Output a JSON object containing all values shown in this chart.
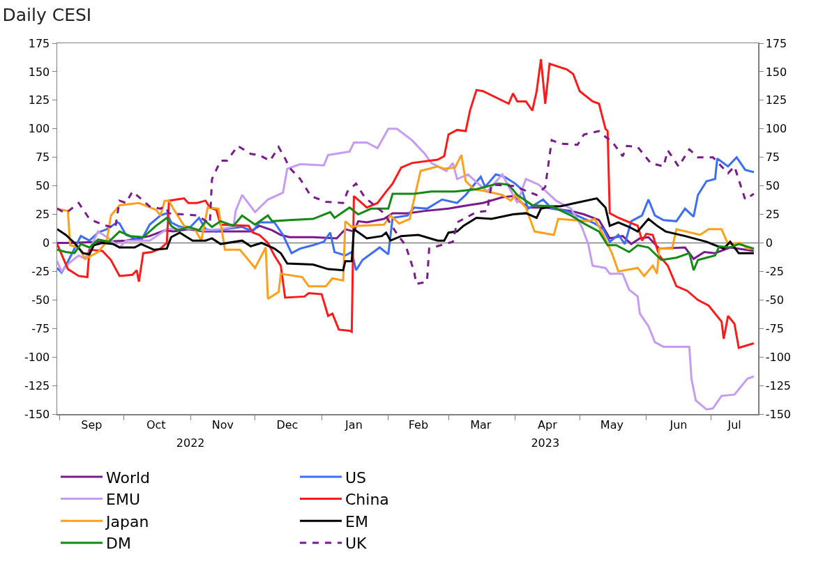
{
  "chart_data": {
    "type": "line",
    "title": "Daily CESI",
    "legend": "bottom",
    "line_style": "solid",
    "xlim": [
      "2022-08-31",
      "2023-07-23"
    ],
    "xticks": [
      {
        "value": "2022-09-01",
        "label": null
      },
      {
        "value": "2022-09-16",
        "label": "Sep"
      },
      {
        "value": "2022-10-01",
        "label": null
      },
      {
        "value": "2022-10-16",
        "label": "Oct"
      },
      {
        "value": "2022-11-01",
        "label": null
      },
      {
        "value": "2022-11-16",
        "label": "Nov"
      },
      {
        "value": "2022-12-01",
        "label": null
      },
      {
        "value": "2022-12-16",
        "label": "Dec"
      },
      {
        "value": "2023-01-01",
        "label": null
      },
      {
        "value": "2023-01-16",
        "label": "Jan"
      },
      {
        "value": "2023-02-01",
        "label": null
      },
      {
        "value": "2023-02-15",
        "label": "Feb"
      },
      {
        "value": "2023-03-01",
        "label": null
      },
      {
        "value": "2023-03-16",
        "label": "Mar"
      },
      {
        "value": "2023-04-01",
        "label": null
      },
      {
        "value": "2023-04-16",
        "label": "Apr"
      },
      {
        "value": "2023-05-01",
        "label": null
      },
      {
        "value": "2023-05-16",
        "label": "May"
      },
      {
        "value": "2023-06-01",
        "label": null
      },
      {
        "value": "2023-06-16",
        "label": "Jun"
      },
      {
        "value": "2023-07-01",
        "label": null
      },
      {
        "value": "2023-07-12",
        "label": "Jul"
      }
    ],
    "x2lim": [
      "2022-08-31",
      "2023-07-23"
    ],
    "x2ticks": [
      {
        "value": "2022-11-01",
        "label": "2022"
      },
      {
        "value": "2023-04-15",
        "label": "2023"
      }
    ],
    "ylim": [
      -150,
      175
    ],
    "yticks": [
      -150,
      -125,
      -100,
      -75,
      -50,
      -25,
      0,
      25,
      50,
      75,
      100,
      125,
      150,
      175
    ],
    "y2lim": [
      -150,
      175
    ],
    "y2ticks": [
      -150,
      -125,
      -100,
      -75,
      -50,
      -25,
      0,
      25,
      50,
      75,
      100,
      125,
      150,
      175
    ],
    "ref_lines": [
      {
        "axis": "y",
        "value": 0,
        "color": "#808080"
      }
    ],
    "series": [
      {
        "name": "World",
        "color": "#7a1a8c",
        "x": [
          "2022-08-31",
          "2022-09-06",
          "2022-09-21",
          "2022-10-02",
          "2022-10-13",
          "2022-10-20",
          "2022-10-24",
          "2022-10-31",
          "2022-11-07",
          "2022-11-15",
          "2022-11-29",
          "2022-12-03",
          "2022-12-09",
          "2022-12-13",
          "2022-12-17",
          "2022-12-28",
          "2023-01-08",
          "2023-01-12",
          "2023-01-16",
          "2023-01-18",
          "2023-01-22",
          "2023-01-30",
          "2023-02-03",
          "2023-02-10",
          "2023-02-18",
          "2023-03-01",
          "2023-03-10",
          "2023-03-17",
          "2023-03-26",
          "2023-03-31",
          "2023-04-07",
          "2023-04-15",
          "2023-04-27",
          "2023-05-03",
          "2023-05-10",
          "2023-05-15",
          "2023-05-21",
          "2023-05-25",
          "2023-05-29",
          "2023-06-02",
          "2023-06-07",
          "2023-06-19",
          "2023-06-23",
          "2023-06-28",
          "2023-07-03",
          "2023-07-10",
          "2023-07-21"
        ],
        "values": [
          0,
          0,
          1,
          2,
          6,
          11,
          10,
          12,
          10,
          10,
          10,
          15,
          11,
          7,
          5,
          5,
          4,
          12,
          10,
          19,
          18,
          21,
          26,
          26,
          28,
          30,
          33,
          35,
          40,
          41,
          31,
          31,
          28,
          25,
          20,
          4,
          6,
          -1,
          4,
          5,
          -5,
          -4,
          -14,
          -8,
          -9,
          -4,
          -7
        ]
      },
      {
        "name": "US",
        "color": "#3b6ef5",
        "x": [
          "2022-08-31",
          "2022-09-02",
          "2022-09-04",
          "2022-09-11",
          "2022-09-15",
          "2022-09-19",
          "2022-09-23",
          "2022-09-28",
          "2022-09-29",
          "2022-10-02",
          "2022-10-09",
          "2022-10-13",
          "2022-10-18",
          "2022-10-21",
          "2022-10-23",
          "2022-10-26",
          "2022-10-31",
          "2022-11-05",
          "2022-11-08",
          "2022-11-13",
          "2022-11-17",
          "2022-11-25",
          "2022-11-30",
          "2022-12-03",
          "2022-12-10",
          "2022-12-14",
          "2022-12-18",
          "2022-12-22",
          "2022-12-28",
          "2023-01-02",
          "2023-01-05",
          "2023-01-07",
          "2023-01-12",
          "2023-01-15",
          "2023-01-17",
          "2023-01-20",
          "2023-01-28",
          "2023-02-01",
          "2023-02-03",
          "2023-02-10",
          "2023-02-13",
          "2023-02-19",
          "2023-02-26",
          "2023-03-05",
          "2023-03-09",
          "2023-03-12",
          "2023-03-16",
          "2023-03-18",
          "2023-03-23",
          "2023-03-27",
          "2023-04-01",
          "2023-04-04",
          "2023-04-07",
          "2023-04-14",
          "2023-04-18",
          "2023-04-25",
          "2023-05-02",
          "2023-05-08",
          "2023-05-12",
          "2023-05-15",
          "2023-05-19",
          "2023-05-22",
          "2023-05-25",
          "2023-05-30",
          "2023-06-02",
          "2023-06-05",
          "2023-06-09",
          "2023-06-15",
          "2023-06-19",
          "2023-06-23",
          "2023-06-25",
          "2023-06-29",
          "2023-07-03",
          "2023-07-04",
          "2023-07-09",
          "2023-07-13",
          "2023-07-17",
          "2023-07-21"
        ],
        "values": [
          -22,
          -26,
          -20,
          6,
          2,
          9,
          12,
          18,
          17,
          7,
          2,
          16,
          24,
          26,
          18,
          15,
          12,
          22,
          12,
          10,
          12,
          14,
          10,
          18,
          18,
          7,
          -9,
          -5,
          -2,
          1,
          9,
          -8,
          -11,
          -8,
          -24,
          -15,
          -4,
          -10,
          22,
          24,
          31,
          30,
          38,
          35,
          42,
          49,
          58,
          49,
          60,
          58,
          52,
          47,
          30,
          38,
          30,
          28,
          22,
          17,
          12,
          1,
          7,
          -1,
          19,
          24,
          38,
          24,
          20,
          19,
          30,
          23,
          42,
          54,
          56,
          74,
          67,
          75,
          64,
          62
        ]
      },
      {
        "name": "EMU",
        "color": "#c59cf2",
        "x": [
          "2022-08-31",
          "2022-09-02",
          "2022-09-06",
          "2022-09-10",
          "2022-09-13",
          "2022-09-19",
          "2022-09-24",
          "2022-09-29",
          "2022-10-02",
          "2022-10-13",
          "2022-10-21",
          "2022-10-30",
          "2022-11-07",
          "2022-11-15",
          "2022-11-21",
          "2022-11-22",
          "2022-11-25",
          "2022-12-01",
          "2022-12-07",
          "2022-12-14",
          "2022-12-16",
          "2022-12-22",
          "2023-01-02",
          "2023-01-04",
          "2023-01-14",
          "2023-01-16",
          "2023-01-22",
          "2023-01-27",
          "2023-02-01",
          "2023-02-05",
          "2023-02-12",
          "2023-02-18",
          "2023-02-21",
          "2023-02-28",
          "2023-03-03",
          "2023-03-05",
          "2023-03-10",
          "2023-03-19",
          "2023-03-26",
          "2023-04-02",
          "2023-04-06",
          "2023-04-12",
          "2023-04-20",
          "2023-04-27",
          "2023-05-02",
          "2023-05-05",
          "2023-05-07",
          "2023-05-13",
          "2023-05-15",
          "2023-05-21",
          "2023-05-24",
          "2023-05-28",
          "2023-05-29",
          "2023-06-02",
          "2023-06-05",
          "2023-06-09",
          "2023-06-21",
          "2023-06-22",
          "2023-06-24",
          "2023-06-29",
          "2023-07-02",
          "2023-07-06",
          "2023-07-12",
          "2023-07-18",
          "2023-07-21"
        ],
        "values": [
          -16,
          -25,
          -17,
          -11,
          -14,
          10,
          4,
          -4,
          2,
          2,
          12,
          13,
          11,
          12,
          14,
          28,
          42,
          27,
          38,
          44,
          65,
          69,
          68,
          77,
          80,
          88,
          88,
          83,
          100,
          100,
          90,
          78,
          70,
          63,
          70,
          56,
          60,
          45,
          60,
          35,
          56,
          51,
          37,
          30,
          14,
          -1,
          -20,
          -22,
          -27,
          -27,
          -41,
          -47,
          -62,
          -73,
          -87,
          -91,
          -91,
          -119,
          -138,
          -146,
          -145,
          -134,
          -133,
          -119,
          -117
        ]
      },
      {
        "name": "China",
        "color": "#ff1a1a",
        "x": [
          "2022-08-31",
          "2022-09-05",
          "2022-09-10",
          "2022-09-14",
          "2022-09-15",
          "2022-09-21",
          "2022-09-25",
          "2022-09-29",
          "2022-10-05",
          "2022-10-07",
          "2022-10-08",
          "2022-10-10",
          "2022-10-14",
          "2022-10-18",
          "2022-10-21",
          "2022-10-22",
          "2022-10-29",
          "2022-10-31",
          "2022-11-04",
          "2022-11-08",
          "2022-11-10",
          "2022-11-13",
          "2022-11-15",
          "2022-11-28",
          "2022-11-30",
          "2022-12-03",
          "2022-12-07",
          "2022-12-10",
          "2022-12-13",
          "2022-12-15",
          "2022-12-24",
          "2022-12-26",
          "2023-01-01",
          "2023-01-04",
          "2023-01-06",
          "2023-01-09",
          "2023-01-14",
          "2023-01-15",
          "2023-01-16",
          "2023-01-22",
          "2023-01-27",
          "2023-01-31",
          "2023-02-03",
          "2023-02-07",
          "2023-02-12",
          "2023-02-24",
          "2023-02-27",
          "2023-03-01",
          "2023-03-05",
          "2023-03-09",
          "2023-03-11",
          "2023-03-14",
          "2023-03-17",
          "2023-03-29",
          "2023-03-31",
          "2023-04-02",
          "2023-04-06",
          "2023-04-09",
          "2023-04-11",
          "2023-04-13",
          "2023-04-15",
          "2023-04-17",
          "2023-04-25",
          "2023-04-28",
          "2023-05-01",
          "2023-05-07",
          "2023-05-10",
          "2023-05-13",
          "2023-05-14",
          "2023-05-15",
          "2023-05-19",
          "2023-05-28",
          "2023-05-30",
          "2023-06-01",
          "2023-06-04",
          "2023-06-07",
          "2023-06-11",
          "2023-06-15",
          "2023-06-20",
          "2023-06-25",
          "2023-06-30",
          "2023-07-06",
          "2023-07-07",
          "2023-07-09",
          "2023-07-12",
          "2023-07-14",
          "2023-07-21"
        ],
        "values": [
          -1,
          -23,
          -29,
          -30,
          -6,
          -7,
          -15,
          -29,
          -28,
          -24,
          -34,
          -9,
          -8,
          -5,
          0,
          37,
          39,
          35,
          35,
          37,
          31,
          29,
          16,
          15,
          9,
          7,
          0,
          -11,
          -20,
          -48,
          -47,
          -44,
          -45,
          -64,
          -62,
          -76,
          -77,
          -78,
          41,
          31,
          35,
          45,
          52,
          66,
          70,
          73,
          76,
          95,
          99,
          98,
          116,
          134,
          133,
          122,
          131,
          124,
          124,
          116,
          133,
          161,
          122,
          157,
          152,
          148,
          133,
          124,
          122,
          100,
          98,
          26,
          22,
          15,
          2,
          8,
          7,
          -11,
          -20,
          -38,
          -42,
          -50,
          -55,
          -69,
          -84,
          -64,
          -71,
          -92,
          -88
        ]
      },
      {
        "name": "Japan",
        "color": "#ffa01c",
        "x": [
          "2022-08-31",
          "2022-09-05",
          "2022-09-06",
          "2022-09-10",
          "2022-09-13",
          "2022-09-19",
          "2022-09-23",
          "2022-09-25",
          "2022-09-29",
          "2022-10-08",
          "2022-10-16",
          "2022-10-18",
          "2022-10-20",
          "2022-10-22",
          "2022-10-24",
          "2022-10-29",
          "2022-11-03",
          "2022-11-06",
          "2022-11-09",
          "2022-11-14",
          "2022-11-17",
          "2022-11-24",
          "2022-12-01",
          "2022-12-06",
          "2022-12-07",
          "2022-12-12",
          "2022-12-13",
          "2022-12-23",
          "2022-12-26",
          "2023-01-03",
          "2023-01-06",
          "2023-01-11",
          "2023-01-12",
          "2023-01-15",
          "2023-01-18",
          "2023-01-30",
          "2023-02-02",
          "2023-02-06",
          "2023-02-11",
          "2023-02-12",
          "2023-02-16",
          "2023-02-24",
          "2023-02-27",
          "2023-03-04",
          "2023-03-07",
          "2023-03-09",
          "2023-03-13",
          "2023-03-19",
          "2023-03-26",
          "2023-03-30",
          "2023-04-01",
          "2023-04-06",
          "2023-04-10",
          "2023-04-19",
          "2023-04-21",
          "2023-05-05",
          "2023-05-08",
          "2023-05-12",
          "2023-05-16",
          "2023-05-19",
          "2023-05-28",
          "2023-05-31",
          "2023-06-04",
          "2023-06-06",
          "2023-06-07",
          "2023-06-13",
          "2023-06-15",
          "2023-06-26",
          "2023-06-30",
          "2023-07-06",
          "2023-07-09",
          "2023-07-15",
          "2023-07-18",
          "2023-07-21"
        ],
        "values": [
          30,
          28,
          -2,
          -4,
          -14,
          -8,
          1,
          24,
          33,
          35,
          29,
          24,
          37,
          37,
          30,
          15,
          12,
          2,
          31,
          30,
          -6,
          -6,
          -22,
          -4,
          -49,
          -43,
          -27,
          -30,
          -38,
          -38,
          -31,
          -33,
          19,
          14,
          15,
          16,
          24,
          17,
          21,
          30,
          63,
          67,
          65,
          66,
          77,
          54,
          47,
          45,
          42,
          37,
          42,
          31,
          10,
          7,
          21,
          19,
          21,
          7,
          -9,
          -25,
          -22,
          -29,
          -20,
          -27,
          -5,
          -5,
          12,
          7,
          12,
          12,
          -1,
          0,
          -5,
          -5
        ]
      },
      {
        "name": "EM",
        "color": "#000000",
        "x": [
          "2022-08-31",
          "2022-09-04",
          "2022-09-08",
          "2022-09-12",
          "2022-09-15",
          "2022-09-17",
          "2022-09-21",
          "2022-09-26",
          "2022-09-29",
          "2022-10-06",
          "2022-10-09",
          "2022-10-15",
          "2022-10-21",
          "2022-10-23",
          "2022-10-27",
          "2022-11-02",
          "2022-11-08",
          "2022-11-11",
          "2022-11-15",
          "2022-11-25",
          "2022-11-29",
          "2022-12-04",
          "2022-12-10",
          "2022-12-13",
          "2022-12-16",
          "2022-12-28",
          "2023-01-04",
          "2023-01-11",
          "2023-01-12",
          "2023-01-15",
          "2023-01-16",
          "2023-01-22",
          "2023-01-29",
          "2023-01-31",
          "2023-02-02",
          "2023-02-07",
          "2023-02-15",
          "2023-02-24",
          "2023-02-27",
          "2023-03-01",
          "2023-03-05",
          "2023-03-08",
          "2023-03-14",
          "2023-03-21",
          "2023-03-31",
          "2023-04-06",
          "2023-04-11",
          "2023-04-13",
          "2023-04-18",
          "2023-04-22",
          "2023-04-29",
          "2023-05-09",
          "2023-05-13",
          "2023-05-15",
          "2023-05-19",
          "2023-05-24",
          "2023-05-28",
          "2023-06-02",
          "2023-06-06",
          "2023-06-10",
          "2023-06-19",
          "2023-06-29",
          "2023-07-07",
          "2023-07-10",
          "2023-07-14",
          "2023-07-21"
        ],
        "values": [
          12,
          7,
          0,
          -9,
          -10,
          -2,
          0,
          -1,
          -4,
          -4,
          -1,
          -6,
          -5,
          5,
          9,
          2,
          2,
          4,
          -1,
          2,
          -3,
          0,
          -5,
          -9,
          -18,
          -19,
          -23,
          -24,
          -16,
          -16,
          12,
          4,
          6,
          9,
          2,
          6,
          7,
          2,
          2,
          9,
          10,
          15,
          22,
          21,
          25,
          26,
          22,
          30,
          32,
          32,
          35,
          39,
          31,
          15,
          18,
          14,
          10,
          21,
          15,
          10,
          6,
          1,
          -5,
          1,
          -9,
          -9
        ]
      },
      {
        "name": "DM",
        "color": "#138a13",
        "x": [
          "2022-08-31",
          "2022-09-04",
          "2022-09-08",
          "2022-09-11",
          "2022-09-15",
          "2022-09-19",
          "2022-09-24",
          "2022-09-29",
          "2022-10-04",
          "2022-10-10",
          "2022-10-16",
          "2022-10-21",
          "2022-10-23",
          "2022-10-26",
          "2022-10-31",
          "2022-11-05",
          "2022-11-08",
          "2022-11-11",
          "2022-11-15",
          "2022-11-21",
          "2022-11-25",
          "2022-12-01",
          "2022-12-07",
          "2022-12-09",
          "2022-12-17",
          "2022-12-28",
          "2023-01-05",
          "2023-01-07",
          "2023-01-14",
          "2023-01-18",
          "2023-01-24",
          "2023-02-01",
          "2023-02-03",
          "2023-02-13",
          "2023-02-21",
          "2023-03-04",
          "2023-03-14",
          "2023-03-24",
          "2023-03-29",
          "2023-04-02",
          "2023-04-09",
          "2023-04-18",
          "2023-04-27",
          "2023-05-03",
          "2023-05-10",
          "2023-05-14",
          "2023-05-18",
          "2023-05-24",
          "2023-05-28",
          "2023-06-02",
          "2023-06-08",
          "2023-06-15",
          "2023-06-21",
          "2023-06-23",
          "2023-06-25",
          "2023-07-03",
          "2023-07-05",
          "2023-07-10",
          "2023-07-14",
          "2023-07-21"
        ],
        "values": [
          -6,
          -8,
          -9,
          -1,
          -4,
          3,
          1,
          10,
          6,
          5,
          15,
          22,
          15,
          11,
          14,
          11,
          19,
          14,
          19,
          15,
          24,
          16,
          24,
          19,
          20,
          21,
          27,
          22,
          31,
          25,
          30,
          30,
          43,
          43,
          45,
          45,
          47,
          52,
          51,
          42,
          33,
          32,
          24,
          17,
          10,
          -2,
          -2,
          -8,
          -2,
          -4,
          -15,
          -13,
          -9,
          -24,
          -15,
          -11,
          -3,
          -4,
          -1,
          -5
        ]
      },
      {
        "name": "UK",
        "color": "#7a1a8c",
        "line_style": "dashed",
        "x": [
          "2022-08-31",
          "2022-09-04",
          "2022-09-10",
          "2022-09-15",
          "2022-09-21",
          "2022-09-27",
          "2022-09-29",
          "2022-10-02",
          "2022-10-05",
          "2022-10-10",
          "2022-10-13",
          "2022-10-18",
          "2022-10-20",
          "2022-10-22",
          "2022-11-04",
          "2022-11-10",
          "2022-11-11",
          "2022-11-15",
          "2022-11-18",
          "2022-11-23",
          "2022-11-29",
          "2022-12-03",
          "2022-12-08",
          "2022-12-12",
          "2022-12-15",
          "2022-12-17",
          "2022-12-22",
          "2022-12-27",
          "2023-01-03",
          "2023-01-11",
          "2023-01-13",
          "2023-01-17",
          "2023-01-21",
          "2023-01-30",
          "2023-02-05",
          "2023-02-09",
          "2023-02-13",
          "2023-02-14",
          "2023-02-19",
          "2023-02-20",
          "2023-03-03",
          "2023-03-05",
          "2023-03-14",
          "2023-03-19",
          "2023-03-21",
          "2023-03-31",
          "2023-04-11",
          "2023-04-15",
          "2023-04-18",
          "2023-04-22",
          "2023-04-30",
          "2023-05-03",
          "2023-05-10",
          "2023-05-13",
          "2023-05-16",
          "2023-05-21",
          "2023-05-23",
          "2023-05-28",
          "2023-06-03",
          "2023-06-09",
          "2023-06-11",
          "2023-06-16",
          "2023-06-21",
          "2023-06-25",
          "2023-07-02",
          "2023-07-09",
          "2023-07-12",
          "2023-07-17",
          "2023-07-21"
        ],
        "values": [
          30,
          26,
          35,
          21,
          16,
          13,
          37,
          35,
          45,
          37,
          32,
          30,
          32,
          26,
          24,
          17,
          56,
          72,
          72,
          85,
          78,
          77,
          72,
          84,
          74,
          66,
          56,
          41,
          36,
          35,
          45,
          52,
          40,
          26,
          8,
          -2,
          -25,
          -36,
          -34,
          -5,
          1,
          18,
          27,
          28,
          51,
          50,
          42,
          49,
          90,
          87,
          86,
          95,
          98,
          93,
          89,
          76,
          85,
          84,
          70,
          67,
          81,
          67,
          82,
          75,
          75,
          61,
          67,
          38,
          43
        ]
      }
    ]
  }
}
